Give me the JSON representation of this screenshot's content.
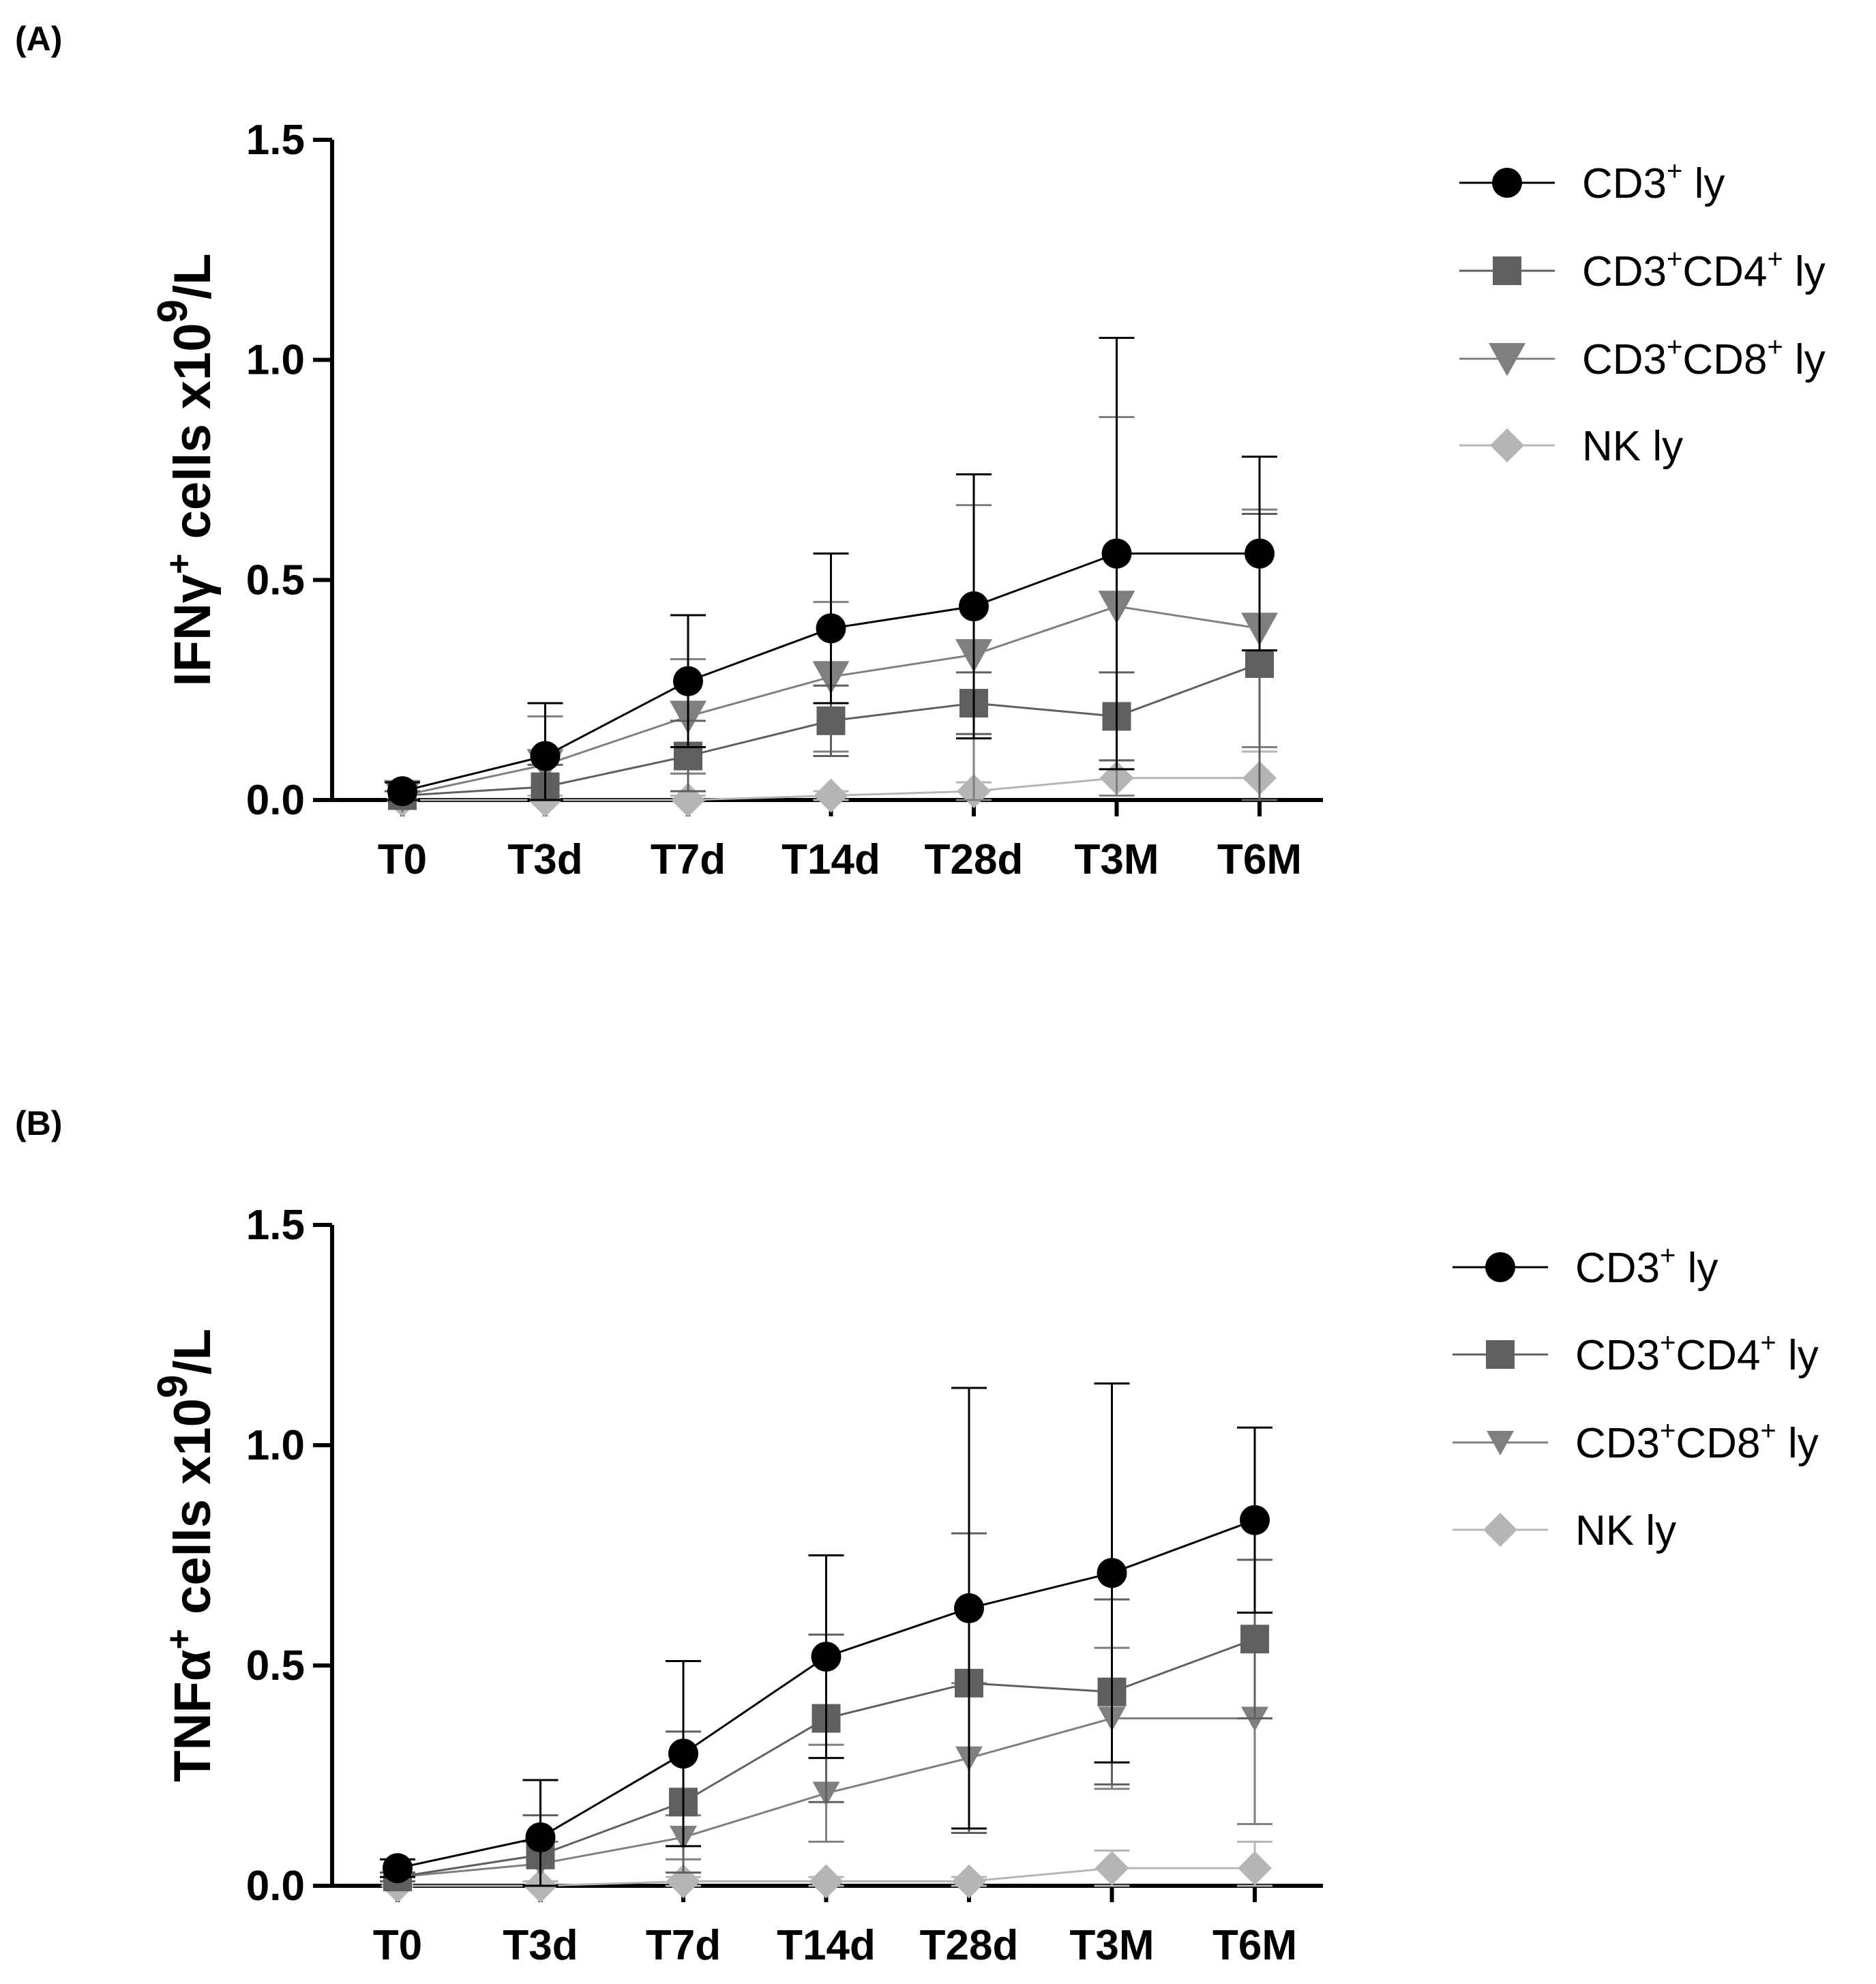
{
  "panels": [
    {
      "label": "(A)"
    },
    {
      "label": "(B)"
    }
  ],
  "chart_data": [
    {
      "type": "line",
      "title": "",
      "ylabel": "IFNγ⁺ cells x10⁹/L",
      "ylabel_parts": {
        "base": "IFNγ",
        "sup1": "+",
        "mid": " cells x10",
        "sup2": "9",
        "end": "/L"
      },
      "xlabel": "",
      "categories": [
        "T0",
        "T3d",
        "T7d",
        "T14d",
        "T28d",
        "T3M",
        "T6M"
      ],
      "ylim": [
        0,
        1.5
      ],
      "yticks": [
        "0.0",
        "0.5",
        "1.0",
        "1.5"
      ],
      "series": [
        {
          "name": "CD3⁺ ly",
          "label_base": "CD3",
          "label_sup": "+",
          "label_rest": " ly",
          "marker": "circle",
          "color": "#000000",
          "values": [
            0.02,
            0.1,
            0.27,
            0.39,
            0.44,
            0.56,
            0.56
          ],
          "errors": [
            0.02,
            0.12,
            0.15,
            0.17,
            0.3,
            0.49,
            0.22
          ]
        },
        {
          "name": "CD3⁺CD4⁺ ly",
          "label_base": "CD3",
          "label_sup": "+",
          "label_mid": "CD4",
          "label_sup2": "+",
          "label_rest": " ly",
          "marker": "square",
          "color": "#5f5f5f",
          "values": [
            0.01,
            0.03,
            0.1,
            0.18,
            0.22,
            0.19,
            0.31
          ],
          "errors": [
            0.01,
            0.05,
            0.08,
            0.08,
            0.07,
            0.1,
            0.34
          ]
        },
        {
          "name": "CD3⁺CD8⁺ ly",
          "label_base": "CD3",
          "label_sup": "+",
          "label_mid": "CD8",
          "label_sup2": "+",
          "label_rest": " ly",
          "marker": "triangle",
          "color": "#7f7f7f",
          "values": [
            0.01,
            0.08,
            0.19,
            0.28,
            0.33,
            0.44,
            0.39
          ],
          "errors": [
            0.01,
            0.11,
            0.13,
            0.17,
            0.34,
            0.43,
            0.27
          ]
        },
        {
          "name": "NK ly",
          "label_base": "NK",
          "label_rest": " ly",
          "marker": "diamond",
          "color": "#b5b5b5",
          "values": [
            0.0,
            0.0,
            0.0,
            0.01,
            0.02,
            0.05,
            0.05
          ],
          "errors": [
            0.0,
            0.01,
            0.01,
            0.01,
            0.02,
            0.04,
            0.06
          ]
        }
      ]
    },
    {
      "type": "line",
      "title": "",
      "ylabel": "TNFα⁺ cells x10⁹/L",
      "ylabel_parts": {
        "base": "TNFα",
        "sup1": "+",
        "mid": " cells x10",
        "sup2": "9",
        "end": "/L"
      },
      "xlabel": "",
      "categories": [
        "T0",
        "T3d",
        "T7d",
        "T14d",
        "T28d",
        "T3M",
        "T6M"
      ],
      "ylim": [
        0,
        1.5
      ],
      "yticks": [
        "0.0",
        "0.5",
        "1.0",
        "1.5"
      ],
      "series": [
        {
          "name": "CD3⁺ ly",
          "label_base": "CD3",
          "label_sup": "+",
          "label_rest": " ly",
          "marker": "circle",
          "color": "#000000",
          "values": [
            0.04,
            0.11,
            0.3,
            0.52,
            0.63,
            0.71,
            0.83
          ],
          "errors": [
            0.02,
            0.13,
            0.21,
            0.23,
            0.5,
            0.43,
            0.21
          ]
        },
        {
          "name": "CD3⁺CD4⁺ ly",
          "label_base": "CD3",
          "label_sup": "+",
          "label_mid": "CD4",
          "label_sup2": "+",
          "label_rest": " ly",
          "marker": "square",
          "color": "#5f5f5f",
          "values": [
            0.02,
            0.07,
            0.19,
            0.38,
            0.46,
            0.44,
            0.56
          ],
          "errors": [
            0.01,
            0.09,
            0.16,
            0.19,
            0.34,
            0.21,
            0.18
          ]
        },
        {
          "name": "CD3⁺CD8⁺ ly",
          "label_base": "CD3",
          "label_sup": "+",
          "label_mid": "CD8",
          "label_sup2": "+",
          "label_rest": " ly",
          "marker": "triangle_small",
          "color": "#7f7f7f",
          "values": [
            0.02,
            0.05,
            0.11,
            0.21,
            0.29,
            0.38,
            0.38
          ],
          "errors": [
            0.01,
            0.05,
            0.05,
            0.11,
            0.17,
            0.16,
            0.24
          ]
        },
        {
          "name": "NK ly",
          "label_base": "NK",
          "label_rest": " ly",
          "marker": "diamond",
          "color": "#b5b5b5",
          "values": [
            0.0,
            0.0,
            0.01,
            0.01,
            0.01,
            0.04,
            0.04
          ],
          "errors": [
            0.0,
            0.01,
            0.01,
            0.01,
            0.01,
            0.04,
            0.06
          ]
        }
      ]
    }
  ]
}
